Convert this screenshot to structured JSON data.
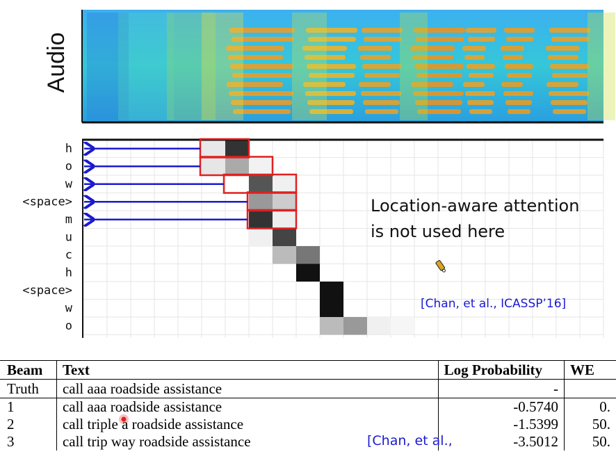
{
  "audio_label": "Audio",
  "tokens": [
    "h",
    "o",
    "w",
    "<space>",
    "m",
    "u",
    "c",
    "h",
    "<space>",
    "w",
    "o"
  ],
  "annotation": {
    "line1": "Location-aware attention",
    "line2": "is not used here"
  },
  "citation_chart": "[Chan, et al., ICASSP’16]",
  "citation_table": "[Chan, et al.,",
  "table": {
    "headers": [
      "Beam",
      "Text",
      "Log Probability",
      "WE"
    ],
    "rows": [
      {
        "beam": "Truth",
        "text": "call aaa roadside assistance",
        "logp": "-",
        "wer": ""
      },
      {
        "beam": "1",
        "text": "call aaa roadside assistance",
        "logp": "-0.5740",
        "wer": "0."
      },
      {
        "beam": "2",
        "text": "call triple a roadside assistance",
        "logp": "-1.5399",
        "wer": "50."
      },
      {
        "beam": "3",
        "text": "call trip way roadside assistance",
        "logp": "-3.5012",
        "wer": "50."
      }
    ]
  },
  "colors": {
    "arrow": "#1a1ad0",
    "highlight": "#e02020",
    "citation": "#1a1ad0"
  }
}
